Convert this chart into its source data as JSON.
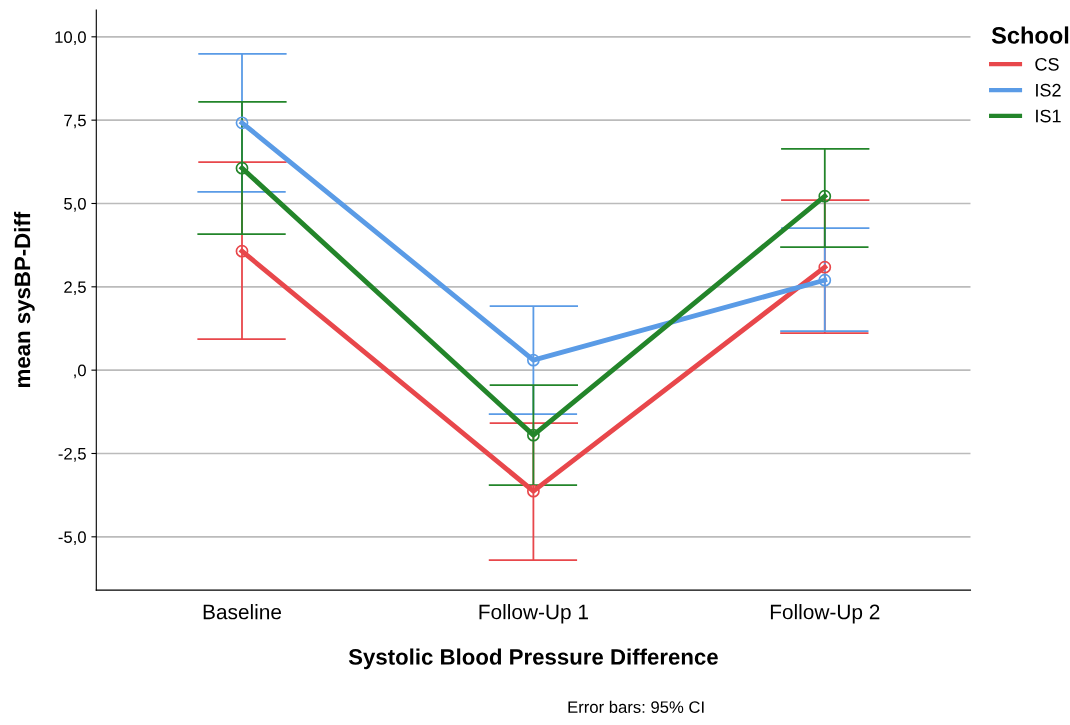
{
  "chart_data": {
    "type": "line",
    "xlabel": "Systolic Blood Pressure Difference",
    "ylabel": "mean sysBP-Diff",
    "legend_title": "School",
    "legend": "top right",
    "categories": [
      "Baseline",
      "Follow-Up 1",
      "Follow-Up 2"
    ],
    "series": [
      {
        "name": "CS",
        "color": "#e8474b",
        "values": [
          3.57,
          -3.63,
          3.09
        ],
        "errors": [
          [
            0.93,
            6.24
          ],
          [
            -5.7,
            -1.59
          ],
          [
            1.11,
            5.1
          ]
        ]
      },
      {
        "name": "IS2",
        "color": "#5a9be6",
        "values": [
          7.42,
          0.3,
          2.7
        ],
        "errors": [
          [
            5.35,
            9.49
          ],
          [
            -1.32,
            1.92
          ],
          [
            1.17,
            4.26
          ]
        ]
      },
      {
        "name": "IS1",
        "color": "#23852a",
        "values": [
          6.06,
          -1.95,
          5.22
        ],
        "errors": [
          [
            4.08,
            8.05
          ],
          [
            -3.45,
            -0.45
          ],
          [
            3.69,
            6.64
          ]
        ]
      }
    ],
    "ylim": [
      -6.6,
      10.8
    ],
    "yticks": [
      {
        "value": -5,
        "label": "-5,0"
      },
      {
        "value": -2.5,
        "label": "-2,5"
      },
      {
        "value": 0,
        "label": ",0"
      },
      {
        "value": 2.5,
        "label": "2,5"
      },
      {
        "value": 5,
        "label": "5,0"
      },
      {
        "value": 7.5,
        "label": "7,5"
      },
      {
        "value": 10,
        "label": "10,0"
      }
    ],
    "grid": "y",
    "marker": "circle",
    "line_style": "solid",
    "annotations": [
      "Error bars: 95% CI"
    ]
  }
}
